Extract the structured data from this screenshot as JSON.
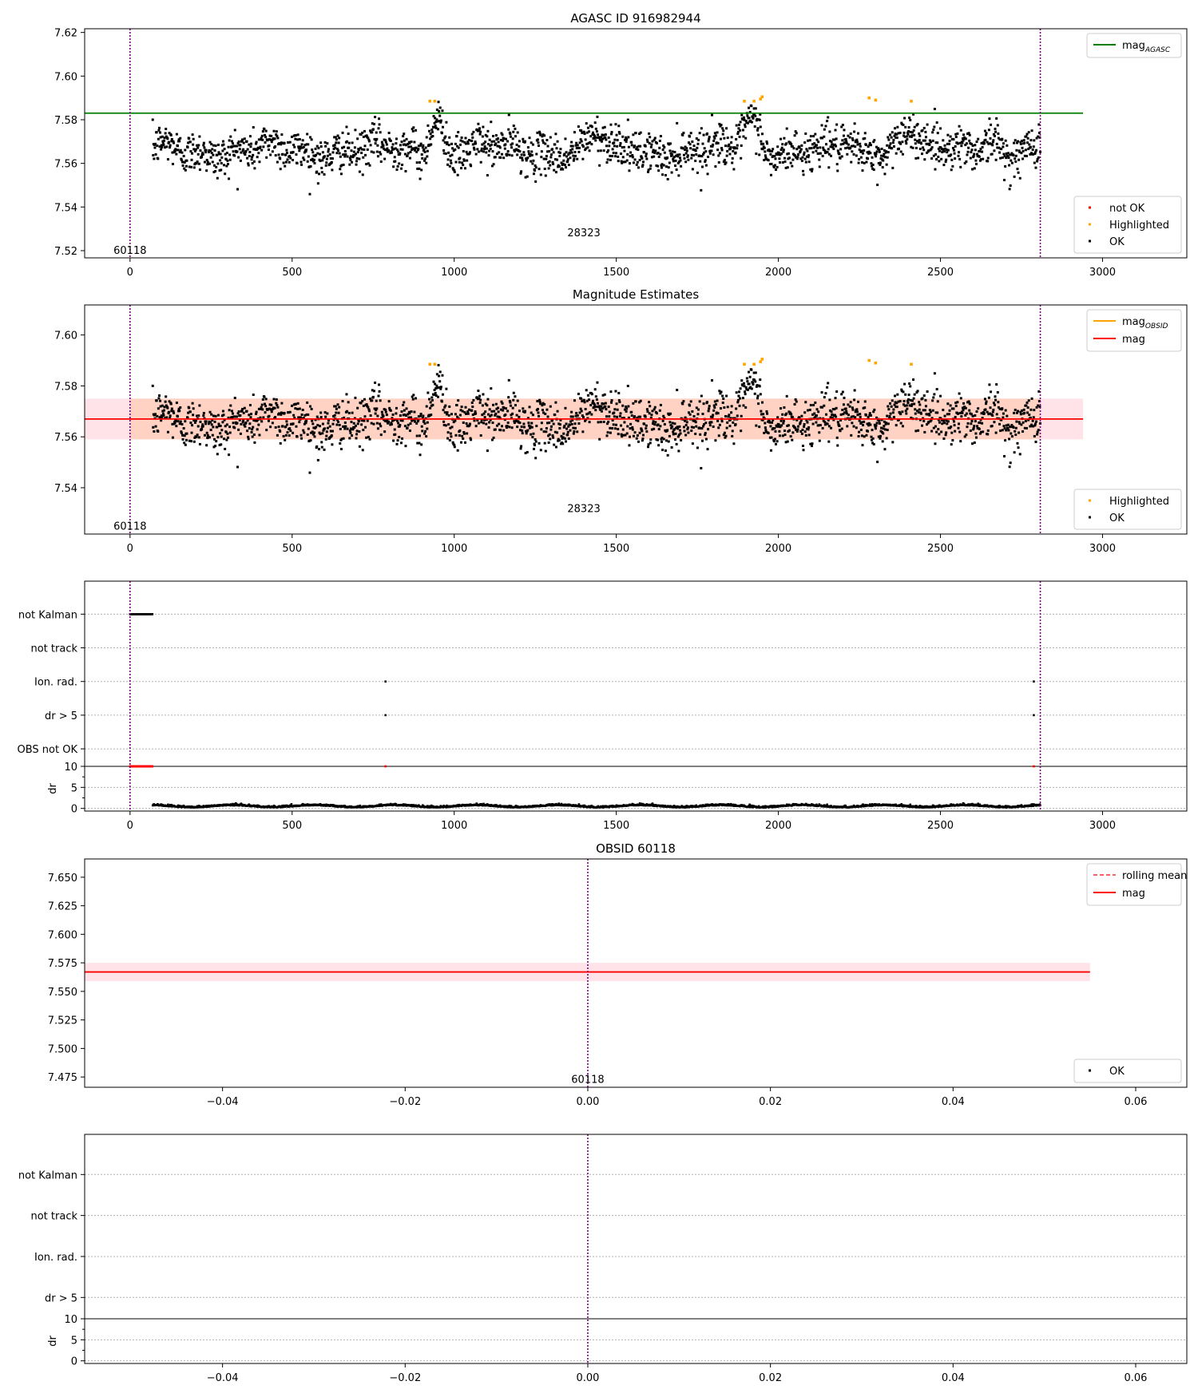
{
  "chart_data": [
    {
      "type": "scatter",
      "title": "AGASC ID 916982944",
      "xlim": [
        -140,
        3260
      ],
      "ylim": [
        7.5167,
        7.6217
      ],
      "xticks": [
        0,
        500,
        1000,
        1500,
        2000,
        2500,
        3000
      ],
      "yticks": [
        7.52,
        7.54,
        7.56,
        7.58,
        7.6,
        7.62
      ],
      "ytick_decimals": 2,
      "vlines": [
        0,
        2808
      ],
      "vline_color": "#800080",
      "text_labels": [
        {
          "x": 0,
          "y": 7.5185,
          "text": "60118"
        },
        {
          "x": 1400,
          "y": 7.5265,
          "text": "28323"
        }
      ],
      "hlines": [
        {
          "y": 7.583,
          "color": "#008000",
          "x0": -140,
          "x1": 2940
        }
      ],
      "band": null,
      "points": {
        "x_range": [
          70,
          2808
        ],
        "gaps": [],
        "mean": 7.566,
        "scatter": 0.0065,
        "bumps": [
          {
            "x0": 905,
            "x1": 985,
            "dy": 0.0155
          },
          {
            "x0": 1870,
            "x1": 1965,
            "dy": 0.0135
          },
          {
            "x0": 2330,
            "x1": 2460,
            "dy": 0.009
          },
          {
            "x0": 1390,
            "x1": 1480,
            "dy": 0.006
          },
          {
            "x0": 2600,
            "x1": 2700,
            "dy": 0.006
          }
        ]
      },
      "highlighted": [
        [
          925,
          7.5885
        ],
        [
          940,
          7.5885
        ],
        [
          1895,
          7.5885
        ],
        [
          1925,
          7.5885
        ],
        [
          1945,
          7.5895
        ],
        [
          1950,
          7.5905
        ],
        [
          2280,
          7.59
        ],
        [
          2300,
          7.589
        ],
        [
          2410,
          7.5885
        ]
      ],
      "legend": {
        "position": "upper right",
        "lines": [
          {
            "label": "mag",
            "sub": "AGASC",
            "color": "#008000"
          }
        ]
      },
      "legend2": {
        "position": "lower right",
        "markers": [
          {
            "label": "not OK",
            "color": "#ff0000"
          },
          {
            "label": "Highlighted",
            "color": "#ffa500"
          },
          {
            "label": "OK",
            "color": "#000000"
          }
        ]
      }
    },
    {
      "type": "scatter",
      "title": "Magnitude Estimates",
      "xlim": [
        -140,
        3260
      ],
      "ylim": [
        7.5218,
        7.6118
      ],
      "xticks": [
        0,
        500,
        1000,
        1500,
        2000,
        2500,
        3000
      ],
      "yticks": [
        7.54,
        7.56,
        7.58,
        7.6
      ],
      "ytick_decimals": 2,
      "vlines": [
        0,
        2808
      ],
      "vline_color": "#800080",
      "text_labels": [
        {
          "x": 0,
          "y": 7.5235,
          "text": "60118"
        },
        {
          "x": 1400,
          "y": 7.5305,
          "text": "28323"
        }
      ],
      "hlines": [
        {
          "y": 7.567,
          "color": "#ff0000",
          "x0": -140,
          "x1": 2940
        }
      ],
      "band": {
        "y0": 7.559,
        "y1": 7.575,
        "x0": -140,
        "x1": 2940,
        "color": "#ffc0cb",
        "opacity": 0.45
      },
      "band2": {
        "y0": 7.559,
        "y1": 7.575,
        "x0": 0,
        "x1": 2808,
        "color": "#ffb27f",
        "opacity": 0.35
      },
      "points": {
        "x_range": [
          70,
          2808
        ],
        "gaps": [],
        "mean": 7.566,
        "scatter": 0.0065,
        "bumps": [
          {
            "x0": 905,
            "x1": 985,
            "dy": 0.0155
          },
          {
            "x0": 1870,
            "x1": 1965,
            "dy": 0.0135
          },
          {
            "x0": 2330,
            "x1": 2460,
            "dy": 0.009
          },
          {
            "x0": 1390,
            "x1": 1480,
            "dy": 0.006
          },
          {
            "x0": 2600,
            "x1": 2700,
            "dy": 0.006
          }
        ]
      },
      "highlighted": [
        [
          925,
          7.5885
        ],
        [
          940,
          7.5885
        ],
        [
          1895,
          7.5885
        ],
        [
          1925,
          7.5885
        ],
        [
          1945,
          7.5895
        ],
        [
          1950,
          7.5905
        ],
        [
          2280,
          7.59
        ],
        [
          2300,
          7.589
        ],
        [
          2410,
          7.5885
        ]
      ],
      "legend": {
        "position": "upper right",
        "lines": [
          {
            "label": "mag",
            "sub": "OBSID",
            "color": "#ffa500"
          },
          {
            "label": "mag",
            "sub": "",
            "color": "#ff0000"
          }
        ]
      },
      "legend2": {
        "position": "lower right",
        "markers": [
          {
            "label": "Highlighted",
            "color": "#ffa500"
          },
          {
            "label": "OK",
            "color": "#000000"
          }
        ]
      }
    },
    {
      "type": "flags",
      "xlim": [
        -140,
        3260
      ],
      "xticks": [
        0,
        500,
        1000,
        1500,
        2000,
        2500,
        3000
      ],
      "flag_labels": [
        "not Kalman",
        "not track",
        "Ion. rad.",
        "dr > 5",
        "OBS not OK"
      ],
      "dr_label": "dr",
      "dr_ticks": [
        0,
        5,
        10
      ],
      "vlines": [
        0,
        2808
      ],
      "flag_points": [
        {
          "flag": "not Kalman",
          "x0": 0,
          "x1": 70
        },
        {
          "flag": "Ion. rad.",
          "x": 788
        },
        {
          "flag": "Ion. rad.",
          "x": 2788
        },
        {
          "flag": "dr > 5",
          "x": 788
        },
        {
          "flag": "dr > 5",
          "x": 2788
        }
      ],
      "dr_outliers": [
        {
          "x0": 0,
          "x1": 70
        },
        {
          "x": 788
        },
        {
          "x": 2788
        }
      ],
      "dr_baseline": {
        "x_range": [
          70,
          2808
        ],
        "mean": 0.45,
        "scatter": 0.3
      }
    },
    {
      "type": "line",
      "title": "OBSID 60118",
      "xlim": [
        -0.0551,
        0.0656
      ],
      "ylim": [
        7.466,
        7.666
      ],
      "xticks": [
        -0.04,
        -0.02,
        0.0,
        0.02,
        0.04,
        0.06
      ],
      "xtick_decimals": 2,
      "yticks": [
        7.475,
        7.5,
        7.525,
        7.55,
        7.575,
        7.6,
        7.625,
        7.65
      ],
      "ytick_decimals": 3,
      "vlines": [
        0
      ],
      "vline_color": "#800080",
      "text_labels": [
        {
          "x": 0,
          "y": 7.4698,
          "text": "60118"
        }
      ],
      "hlines": [
        {
          "y": 7.567,
          "color": "#ff0000",
          "x0": -0.0551,
          "x1": 0.055
        }
      ],
      "band": {
        "y0": 7.559,
        "y1": 7.575,
        "x0": -0.0551,
        "x1": 0.055,
        "color": "#ffc0cb",
        "opacity": 0.45
      },
      "legend": {
        "position": "upper right",
        "lines": [
          {
            "label": "rolling mean",
            "sub": "",
            "color": "#ff0000",
            "dash": true
          },
          {
            "label": "mag",
            "sub": "",
            "color": "#ff0000"
          }
        ]
      },
      "legend2": {
        "position": "lower right",
        "markers": [
          {
            "label": "OK",
            "color": "#000000"
          }
        ]
      }
    },
    {
      "type": "flags",
      "xlim": [
        -0.0551,
        0.0656
      ],
      "xticks": [
        -0.04,
        -0.02,
        0.0,
        0.02,
        0.04,
        0.06
      ],
      "xtick_decimals": 2,
      "flag_labels": [
        "not Kalman",
        "not track",
        "Ion. rad.",
        "dr > 5"
      ],
      "dr_label": "dr",
      "dr_ticks": [
        0,
        5,
        10
      ],
      "vlines": [
        0
      ],
      "flag_points": [],
      "dr_outliers": [],
      "dr_baseline": null
    }
  ]
}
